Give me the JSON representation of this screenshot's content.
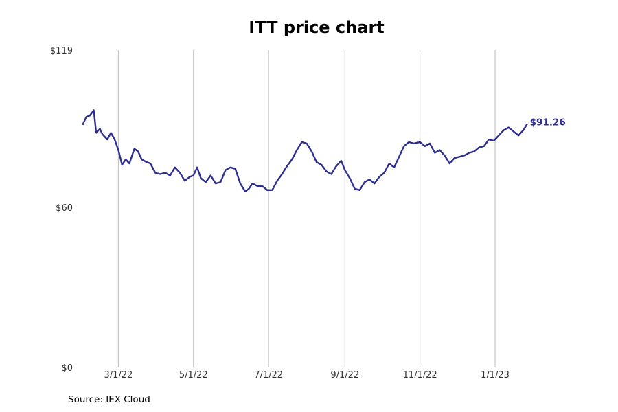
{
  "chart_data": {
    "type": "line",
    "title": "ITT price chart",
    "xlabel": "",
    "ylabel": "",
    "source": "Source: IEX Cloud",
    "line_color": "#2e2e8f",
    "grid": "vertical lines at x ticks",
    "y_ticks": [
      "$0",
      "$60",
      "$119"
    ],
    "y_tick_values": [
      0,
      60,
      119
    ],
    "ylim": [
      0,
      119
    ],
    "x_ticks": [
      "3/1/22",
      "5/1/22",
      "7/1/22",
      "9/1/22",
      "11/1/22",
      "1/1/23"
    ],
    "x_tick_dates": [
      "2022-03-01",
      "2022-05-01",
      "2022-07-01",
      "2022-09-01",
      "2022-11-01",
      "2023-01-01"
    ],
    "xlim": [
      "2022-01-28",
      "2023-02-28"
    ],
    "last_label": "$91.26",
    "series": [
      {
        "x": [
          "2022-01-31",
          "2022-02-03",
          "2022-02-06",
          "2022-02-09",
          "2022-02-11",
          "2022-02-14",
          "2022-02-16",
          "2022-02-20",
          "2022-02-23",
          "2022-02-26",
          "2022-03-01",
          "2022-03-04",
          "2022-03-07",
          "2022-03-10",
          "2022-03-14",
          "2022-03-17",
          "2022-03-20",
          "2022-03-24",
          "2022-03-27",
          "2022-03-31",
          "2022-04-04",
          "2022-04-08",
          "2022-04-12",
          "2022-04-16",
          "2022-04-20",
          "2022-04-24",
          "2022-04-28",
          "2022-05-01",
          "2022-05-04",
          "2022-05-07",
          "2022-05-11",
          "2022-05-15",
          "2022-05-19",
          "2022-05-23",
          "2022-05-27",
          "2022-05-31",
          "2022-06-04",
          "2022-06-08",
          "2022-06-12",
          "2022-06-15",
          "2022-06-18",
          "2022-06-22",
          "2022-06-26",
          "2022-06-30",
          "2022-07-04",
          "2022-07-08",
          "2022-07-12",
          "2022-07-16",
          "2022-07-20",
          "2022-07-24",
          "2022-07-28",
          "2022-08-01",
          "2022-08-05",
          "2022-08-09",
          "2022-08-13",
          "2022-08-17",
          "2022-08-21",
          "2022-08-25",
          "2022-08-29",
          "2022-09-01",
          "2022-09-05",
          "2022-09-09",
          "2022-09-13",
          "2022-09-17",
          "2022-09-21",
          "2022-09-25",
          "2022-09-29",
          "2022-10-03",
          "2022-10-07",
          "2022-10-11",
          "2022-10-15",
          "2022-10-19",
          "2022-10-23",
          "2022-10-27",
          "2022-11-01",
          "2022-11-05",
          "2022-11-09",
          "2022-11-13",
          "2022-11-17",
          "2022-11-21",
          "2022-11-25",
          "2022-11-29",
          "2022-12-03",
          "2022-12-07",
          "2022-12-11",
          "2022-12-15",
          "2022-12-19",
          "2022-12-23",
          "2022-12-27",
          "2022-12-31",
          "2023-01-04",
          "2023-01-08",
          "2023-01-12",
          "2023-01-16",
          "2023-01-20",
          "2023-01-24",
          "2023-01-27"
        ],
        "y": [
          91.0,
          94.0,
          94.5,
          96.5,
          88.0,
          89.5,
          87.5,
          85.5,
          88.0,
          85.5,
          81.5,
          76.0,
          78.0,
          76.5,
          82.0,
          81.0,
          78.0,
          77.0,
          76.5,
          73.0,
          72.5,
          73.0,
          72.0,
          75.0,
          73.0,
          70.0,
          71.5,
          72.0,
          75.0,
          71.0,
          69.5,
          72.0,
          69.0,
          69.5,
          74.0,
          75.0,
          74.5,
          69.0,
          66.0,
          67.0,
          69.0,
          68.0,
          68.0,
          66.5,
          66.5,
          70.0,
          72.5,
          75.5,
          78.0,
          81.5,
          84.5,
          84.0,
          81.0,
          77.0,
          76.0,
          73.5,
          72.5,
          75.5,
          77.5,
          74.0,
          71.0,
          67.0,
          66.5,
          69.5,
          70.5,
          69.0,
          71.5,
          73.0,
          76.5,
          75.0,
          79.0,
          83.0,
          84.5,
          84.0,
          84.5,
          83.0,
          84.0,
          80.5,
          81.5,
          79.5,
          76.5,
          78.5,
          79.0,
          79.5,
          80.5,
          81.0,
          82.5,
          83.0,
          85.5,
          85.0,
          87.0,
          89.0,
          90.0,
          88.5,
          87.0,
          89.0,
          91.26
        ]
      }
    ]
  }
}
